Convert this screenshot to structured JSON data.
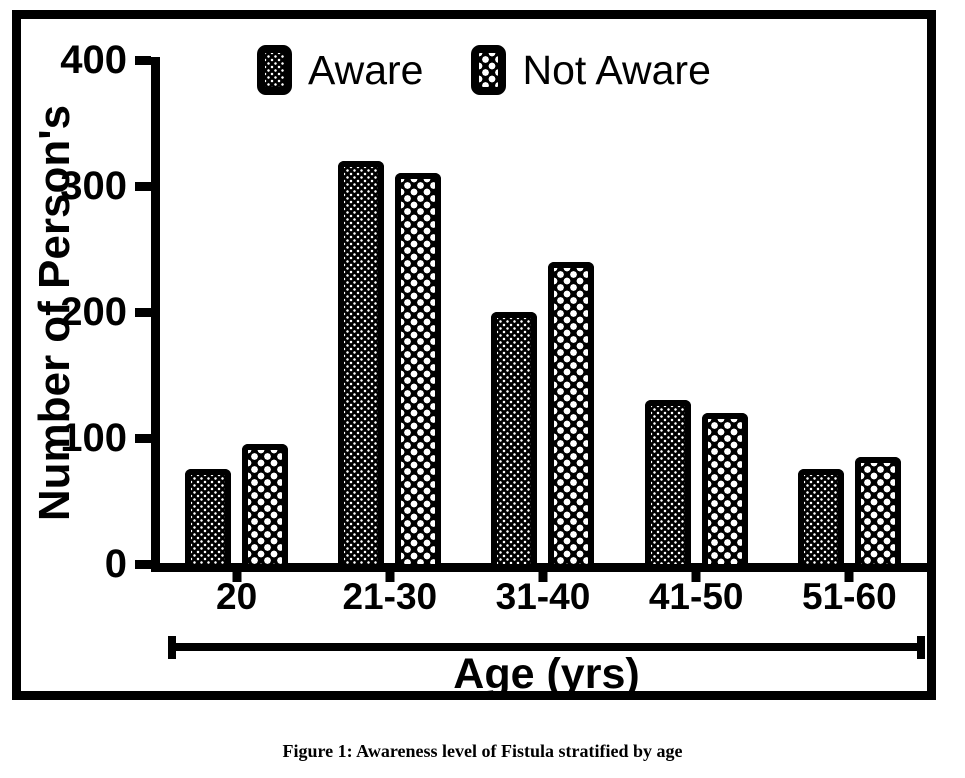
{
  "figure_caption": "Figure 1: Awareness level of Fistula stratified by age",
  "chart_data": {
    "type": "bar",
    "title": "",
    "categories": [
      "20",
      "21-30",
      "31-40",
      "41-50",
      "51-60"
    ],
    "series": [
      {
        "name": "Aware",
        "pattern": "fine-dots",
        "values": [
          75,
          320,
          200,
          130,
          75
        ]
      },
      {
        "name": "Not Aware",
        "pattern": "checker",
        "values": [
          95,
          310,
          240,
          120,
          85
        ]
      }
    ],
    "xlabel": "Age (yrs)",
    "ylabel": "Number of Person's",
    "yticks": [
      0,
      100,
      200,
      300,
      400
    ],
    "ylim": [
      0,
      400
    ],
    "legend_position": "top",
    "grid": false,
    "colors": {
      "bar_fill": "#000000",
      "pattern_dot": "#ffffff",
      "text": "#000000",
      "background": "#ffffff",
      "frame_border": "#000000"
    }
  }
}
